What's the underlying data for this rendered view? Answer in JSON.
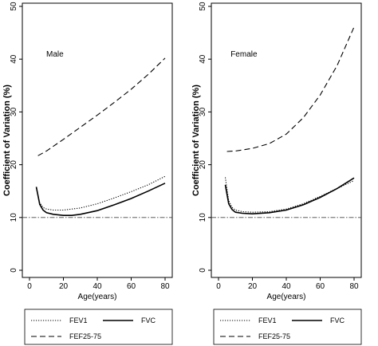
{
  "chart_data": [
    {
      "type": "line",
      "panel_label": "Male",
      "xlabel": "Age(years)",
      "ylabel": "Coefficient of Variation (%)",
      "xlim": [
        0,
        80
      ],
      "ylim": [
        0,
        50
      ],
      "xticks": [
        0,
        20,
        40,
        60,
        80
      ],
      "yticks": [
        0,
        10,
        20,
        30,
        40,
        50
      ],
      "reference_line": {
        "y": 10,
        "style": "dash-dot"
      },
      "legend_position": "bottom",
      "series": [
        {
          "name": "FEV1",
          "style": "dotted",
          "x": [
            4,
            6,
            8,
            10,
            14,
            20,
            30,
            40,
            50,
            60,
            70,
            80
          ],
          "y": [
            15.6,
            12.8,
            11.9,
            11.6,
            11.4,
            11.4,
            11.8,
            12.6,
            13.7,
            14.9,
            16.2,
            17.8
          ]
        },
        {
          "name": "FVC",
          "style": "solid",
          "x": [
            4,
            6,
            8,
            10,
            14,
            20,
            25,
            30,
            40,
            50,
            60,
            70,
            80
          ],
          "y": [
            15.8,
            12.5,
            11.4,
            10.9,
            10.6,
            10.4,
            10.4,
            10.6,
            11.3,
            12.4,
            13.6,
            15.0,
            16.5
          ]
        },
        {
          "name": "FEF25-75",
          "style": "dashed",
          "x": [
            5,
            10,
            20,
            30,
            40,
            50,
            60,
            70,
            80
          ],
          "y": [
            21.7,
            22.6,
            24.8,
            27.1,
            29.4,
            31.8,
            34.3,
            37.1,
            40.2
          ]
        }
      ]
    },
    {
      "type": "line",
      "panel_label": "Female",
      "xlabel": "Age(years)",
      "ylabel": "Coefficient of Variation (%)",
      "xlim": [
        0,
        80
      ],
      "ylim": [
        0,
        50
      ],
      "xticks": [
        0,
        20,
        40,
        60,
        80
      ],
      "yticks": [
        0,
        10,
        20,
        30,
        40,
        50
      ],
      "reference_line": {
        "y": 10,
        "style": "dash-dot"
      },
      "legend_position": "bottom",
      "series": [
        {
          "name": "FEV1",
          "style": "dotted",
          "x": [
            4,
            6,
            8,
            10,
            14,
            20,
            30,
            40,
            50,
            60,
            70,
            80
          ],
          "y": [
            17.6,
            13.2,
            11.9,
            11.4,
            11.1,
            11.0,
            11.1,
            11.6,
            12.6,
            14.0,
            15.5,
            17.0
          ]
        },
        {
          "name": "FVC",
          "style": "solid",
          "x": [
            4,
            6,
            8,
            10,
            14,
            20,
            30,
            40,
            50,
            60,
            70,
            80
          ],
          "y": [
            16.2,
            12.6,
            11.5,
            11.0,
            10.8,
            10.7,
            10.9,
            11.4,
            12.4,
            13.8,
            15.5,
            17.5
          ]
        },
        {
          "name": "FEF25-75",
          "style": "dashed",
          "x": [
            5,
            10,
            20,
            30,
            40,
            50,
            60,
            70,
            80
          ],
          "y": [
            22.5,
            22.6,
            23.1,
            24.0,
            25.8,
            28.9,
            33.2,
            38.8,
            46.1
          ]
        }
      ]
    }
  ]
}
